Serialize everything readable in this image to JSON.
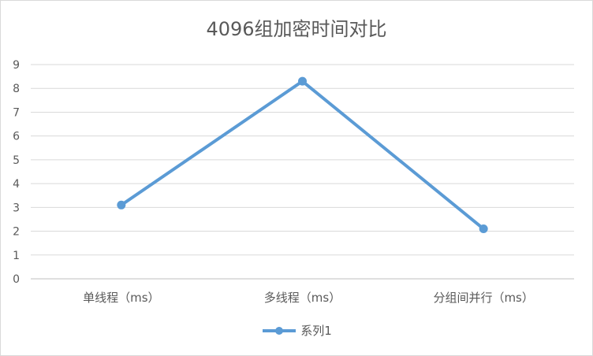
{
  "chart_data": {
    "type": "line",
    "title": "4096组加密时间对比",
    "categories": [
      "单线程（ms）",
      "多线程（ms）",
      "分组间并行（ms）"
    ],
    "series": [
      {
        "name": "系列1",
        "values": [
          3.1,
          8.3,
          2.1
        ],
        "color": "#5b9bd5"
      }
    ],
    "ylim": [
      0,
      9
    ],
    "yticks": [
      0,
      1,
      2,
      3,
      4,
      5,
      6,
      7,
      8,
      9
    ],
    "xlabel": "",
    "ylabel": "",
    "grid": true,
    "legend_position": "bottom"
  }
}
